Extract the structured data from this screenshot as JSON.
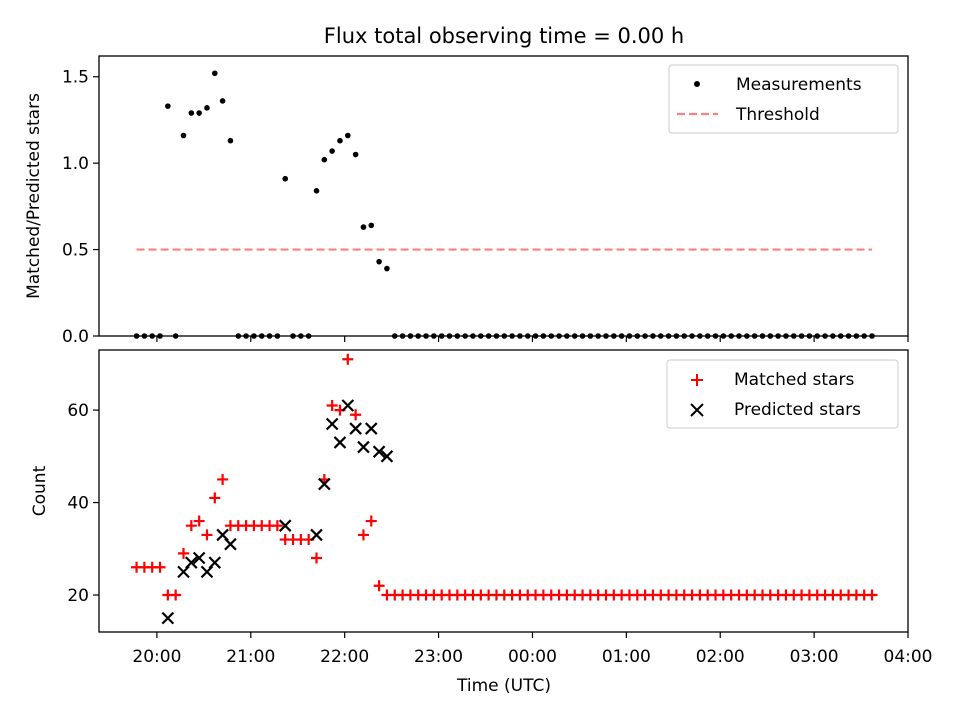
{
  "figure": {
    "title": "Flux total observing time = 0.00 h",
    "xlabel": "Time (UTC)"
  },
  "colors": {
    "measurements": "#000000",
    "threshold": "#ff7f7f",
    "matched": "#ff0000",
    "predicted": "#000000"
  },
  "chart_data": [
    {
      "type": "scatter",
      "title": "Flux total observing time = 0.00 h",
      "xlabel": "",
      "ylabel": "Matched/Predicted stars",
      "xlim": [
        "19:23",
        "04:00"
      ],
      "ylim": [
        0,
        1.62
      ],
      "yticks": [
        "0.0",
        "0.5",
        "1.0",
        "1.5"
      ],
      "legend": {
        "placement": "upper right",
        "entries": [
          "Measurements",
          "Threshold"
        ]
      },
      "series": [
        {
          "name": "Measurements",
          "points": [
            [
              "19:47",
              0
            ],
            [
              "19:52",
              0
            ],
            [
              "19:57",
              0
            ],
            [
              "20:02",
              0
            ],
            [
              "20:07",
              1.33
            ],
            [
              "20:12",
              0
            ],
            [
              "20:17",
              1.16
            ],
            [
              "20:22",
              1.29
            ],
            [
              "20:27",
              1.29
            ],
            [
              "20:32",
              1.32
            ],
            [
              "20:37",
              1.52
            ],
            [
              "20:42",
              1.36
            ],
            [
              "20:47",
              1.13
            ],
            [
              "20:52",
              0
            ],
            [
              "20:57",
              0
            ],
            [
              "21:02",
              0
            ],
            [
              "21:07",
              0
            ],
            [
              "21:12",
              0
            ],
            [
              "21:17",
              0
            ],
            [
              "21:22",
              0.91
            ],
            [
              "21:27",
              0
            ],
            [
              "21:32",
              0
            ],
            [
              "21:37",
              0
            ],
            [
              "21:42",
              0.84
            ],
            [
              "21:47",
              1.02
            ],
            [
              "21:52",
              1.07
            ],
            [
              "21:57",
              1.13
            ],
            [
              "22:02",
              1.16
            ],
            [
              "22:07",
              1.05
            ],
            [
              "22:12",
              0.63
            ],
            [
              "22:17",
              0.64
            ],
            [
              "22:22",
              0.43
            ],
            [
              "22:27",
              0.39
            ],
            [
              "22:32",
              0
            ],
            [
              "22:37",
              0
            ],
            [
              "22:42",
              0
            ],
            [
              "22:47",
              0
            ],
            [
              "22:52",
              0
            ],
            [
              "22:57",
              0
            ],
            [
              "23:02",
              0
            ],
            [
              "23:07",
              0
            ],
            [
              "23:12",
              0
            ],
            [
              "23:17",
              0
            ],
            [
              "23:22",
              0
            ],
            [
              "23:27",
              0
            ],
            [
              "23:32",
              0
            ],
            [
              "23:37",
              0
            ],
            [
              "23:42",
              0
            ],
            [
              "23:47",
              0
            ],
            [
              "23:52",
              0
            ],
            [
              "23:57",
              0
            ],
            [
              "00:02",
              0
            ],
            [
              "00:07",
              0
            ],
            [
              "00:12",
              0
            ],
            [
              "00:17",
              0
            ],
            [
              "00:22",
              0
            ],
            [
              "00:27",
              0
            ],
            [
              "00:32",
              0
            ],
            [
              "00:37",
              0
            ],
            [
              "00:42",
              0
            ],
            [
              "00:47",
              0
            ],
            [
              "00:52",
              0
            ],
            [
              "00:57",
              0
            ],
            [
              "01:02",
              0
            ],
            [
              "01:07",
              0
            ],
            [
              "01:12",
              0
            ],
            [
              "01:17",
              0
            ],
            [
              "01:22",
              0
            ],
            [
              "01:27",
              0
            ],
            [
              "01:32",
              0
            ],
            [
              "01:37",
              0
            ],
            [
              "01:42",
              0
            ],
            [
              "01:47",
              0
            ],
            [
              "01:52",
              0
            ],
            [
              "01:57",
              0
            ],
            [
              "02:02",
              0
            ],
            [
              "02:07",
              0
            ],
            [
              "02:12",
              0
            ],
            [
              "02:17",
              0
            ],
            [
              "02:22",
              0
            ],
            [
              "02:27",
              0
            ],
            [
              "02:32",
              0
            ],
            [
              "02:37",
              0
            ],
            [
              "02:42",
              0
            ],
            [
              "02:47",
              0
            ],
            [
              "02:52",
              0
            ],
            [
              "02:57",
              0
            ],
            [
              "03:02",
              0
            ],
            [
              "03:07",
              0
            ],
            [
              "03:12",
              0
            ],
            [
              "03:17",
              0
            ],
            [
              "03:22",
              0
            ],
            [
              "03:27",
              0
            ],
            [
              "03:32",
              0
            ],
            [
              "03:37",
              0
            ]
          ]
        },
        {
          "name": "Threshold",
          "style": "dashed",
          "points": [
            [
              "19:47",
              0.5
            ],
            [
              "03:37",
              0.5
            ]
          ]
        }
      ]
    },
    {
      "type": "scatter",
      "title": "",
      "xlabel": "Time (UTC)",
      "ylabel": "Count",
      "xlim": [
        "19:23",
        "04:00"
      ],
      "ylim": [
        12,
        73
      ],
      "yticks": [
        "20",
        "40",
        "60"
      ],
      "xticks": [
        "20:00",
        "21:00",
        "22:00",
        "23:00",
        "00:00",
        "01:00",
        "02:00",
        "03:00",
        "04:00"
      ],
      "legend": {
        "placement": "upper right",
        "entries": [
          "Matched stars",
          "Predicted stars"
        ]
      },
      "series": [
        {
          "name": "Matched stars",
          "points": [
            [
              "19:47",
              26
            ],
            [
              "19:52",
              26
            ],
            [
              "19:57",
              26
            ],
            [
              "20:02",
              26
            ],
            [
              "20:07",
              20
            ],
            [
              "20:12",
              20
            ],
            [
              "20:17",
              29
            ],
            [
              "20:22",
              35
            ],
            [
              "20:27",
              36
            ],
            [
              "20:32",
              33
            ],
            [
              "20:37",
              41
            ],
            [
              "20:42",
              45
            ],
            [
              "20:47",
              35
            ],
            [
              "20:52",
              35
            ],
            [
              "20:57",
              35
            ],
            [
              "21:02",
              35
            ],
            [
              "21:07",
              35
            ],
            [
              "21:12",
              35
            ],
            [
              "21:17",
              35
            ],
            [
              "21:22",
              32
            ],
            [
              "21:27",
              32
            ],
            [
              "21:32",
              32
            ],
            [
              "21:37",
              32
            ],
            [
              "21:42",
              28
            ],
            [
              "21:47",
              45
            ],
            [
              "21:52",
              61
            ],
            [
              "21:57",
              60
            ],
            [
              "22:02",
              71
            ],
            [
              "22:07",
              59
            ],
            [
              "22:12",
              33
            ],
            [
              "22:17",
              36
            ],
            [
              "22:22",
              22
            ],
            [
              "22:27",
              20
            ],
            [
              "22:32",
              20
            ],
            [
              "22:37",
              20
            ],
            [
              "22:42",
              20
            ],
            [
              "22:47",
              20
            ],
            [
              "22:52",
              20
            ],
            [
              "22:57",
              20
            ],
            [
              "23:02",
              20
            ],
            [
              "23:07",
              20
            ],
            [
              "23:12",
              20
            ],
            [
              "23:17",
              20
            ],
            [
              "23:22",
              20
            ],
            [
              "23:27",
              20
            ],
            [
              "23:32",
              20
            ],
            [
              "23:37",
              20
            ],
            [
              "23:42",
              20
            ],
            [
              "23:47",
              20
            ],
            [
              "23:52",
              20
            ],
            [
              "23:57",
              20
            ],
            [
              "00:02",
              20
            ],
            [
              "00:07",
              20
            ],
            [
              "00:12",
              20
            ],
            [
              "00:17",
              20
            ],
            [
              "00:22",
              20
            ],
            [
              "00:27",
              20
            ],
            [
              "00:32",
              20
            ],
            [
              "00:37",
              20
            ],
            [
              "00:42",
              20
            ],
            [
              "00:47",
              20
            ],
            [
              "00:52",
              20
            ],
            [
              "00:57",
              20
            ],
            [
              "01:02",
              20
            ],
            [
              "01:07",
              20
            ],
            [
              "01:12",
              20
            ],
            [
              "01:17",
              20
            ],
            [
              "01:22",
              20
            ],
            [
              "01:27",
              20
            ],
            [
              "01:32",
              20
            ],
            [
              "01:37",
              20
            ],
            [
              "01:42",
              20
            ],
            [
              "01:47",
              20
            ],
            [
              "01:52",
              20
            ],
            [
              "01:57",
              20
            ],
            [
              "02:02",
              20
            ],
            [
              "02:07",
              20
            ],
            [
              "02:12",
              20
            ],
            [
              "02:17",
              20
            ],
            [
              "02:22",
              20
            ],
            [
              "02:27",
              20
            ],
            [
              "02:32",
              20
            ],
            [
              "02:37",
              20
            ],
            [
              "02:42",
              20
            ],
            [
              "02:47",
              20
            ],
            [
              "02:52",
              20
            ],
            [
              "02:57",
              20
            ],
            [
              "03:02",
              20
            ],
            [
              "03:07",
              20
            ],
            [
              "03:12",
              20
            ],
            [
              "03:17",
              20
            ],
            [
              "03:22",
              20
            ],
            [
              "03:27",
              20
            ],
            [
              "03:32",
              20
            ],
            [
              "03:37",
              20
            ]
          ]
        },
        {
          "name": "Predicted stars",
          "points": [
            [
              "20:07",
              15
            ],
            [
              "20:17",
              25
            ],
            [
              "20:22",
              27
            ],
            [
              "20:27",
              28
            ],
            [
              "20:32",
              25
            ],
            [
              "20:37",
              27
            ],
            [
              "20:42",
              33
            ],
            [
              "20:47",
              31
            ],
            [
              "21:22",
              35
            ],
            [
              "21:42",
              33
            ],
            [
              "21:47",
              44
            ],
            [
              "21:52",
              57
            ],
            [
              "21:57",
              53
            ],
            [
              "22:02",
              61
            ],
            [
              "22:07",
              56
            ],
            [
              "22:12",
              52
            ],
            [
              "22:17",
              56
            ],
            [
              "22:22",
              51
            ],
            [
              "22:27",
              50
            ]
          ]
        }
      ]
    }
  ]
}
